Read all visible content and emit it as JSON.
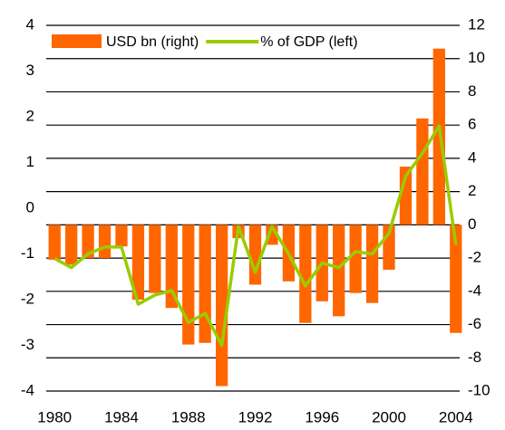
{
  "chart_data": {
    "type": "bar-line",
    "x": [
      1980,
      1981,
      1982,
      1983,
      1984,
      1985,
      1986,
      1987,
      1988,
      1989,
      1990,
      1991,
      1992,
      1993,
      1994,
      1995,
      1996,
      1997,
      1998,
      1999,
      2000,
      2001,
      2002,
      2003,
      2004
    ],
    "xlim": [
      1979.5,
      2004.5
    ],
    "xticks": [
      1980,
      1984,
      1988,
      1992,
      1996,
      2000,
      2004
    ],
    "ylim": [
      -4,
      4
    ],
    "yticks": [
      -4,
      -3,
      -2,
      -1,
      0,
      1,
      2,
      3,
      4
    ],
    "y2lim": [
      -10,
      12
    ],
    "y2ticks": [
      -10,
      -8,
      -6,
      -4,
      -2,
      0,
      2,
      4,
      6,
      8,
      10,
      12
    ],
    "grid": true,
    "legend": "top-left",
    "series": [
      {
        "name": "USD bn (right)",
        "type": "bar",
        "axis": "y2",
        "color": "#ff6600",
        "values": [
          -2.1,
          -2.4,
          -2.0,
          -2.0,
          -1.3,
          -4.5,
          -4.1,
          -5.0,
          -7.2,
          -7.1,
          -9.7,
          -0.8,
          -3.6,
          -1.2,
          -3.4,
          -5.9,
          -4.6,
          -5.5,
          -4.1,
          -4.7,
          -2.7,
          3.5,
          6.4,
          10.6,
          -6.5
        ]
      },
      {
        "name": "% of GDP (left)",
        "type": "line",
        "axis": "y",
        "color": "#99cc00",
        "values": [
          -1.1,
          -1.3,
          -1.0,
          -0.85,
          -0.85,
          -2.1,
          -1.9,
          -1.8,
          -2.5,
          -2.3,
          -3.0,
          -0.4,
          -1.4,
          -0.4,
          -1.0,
          -1.7,
          -1.2,
          -1.3,
          -0.95,
          -1.0,
          -0.55,
          0.7,
          1.2,
          1.8,
          -0.8
        ]
      }
    ]
  }
}
